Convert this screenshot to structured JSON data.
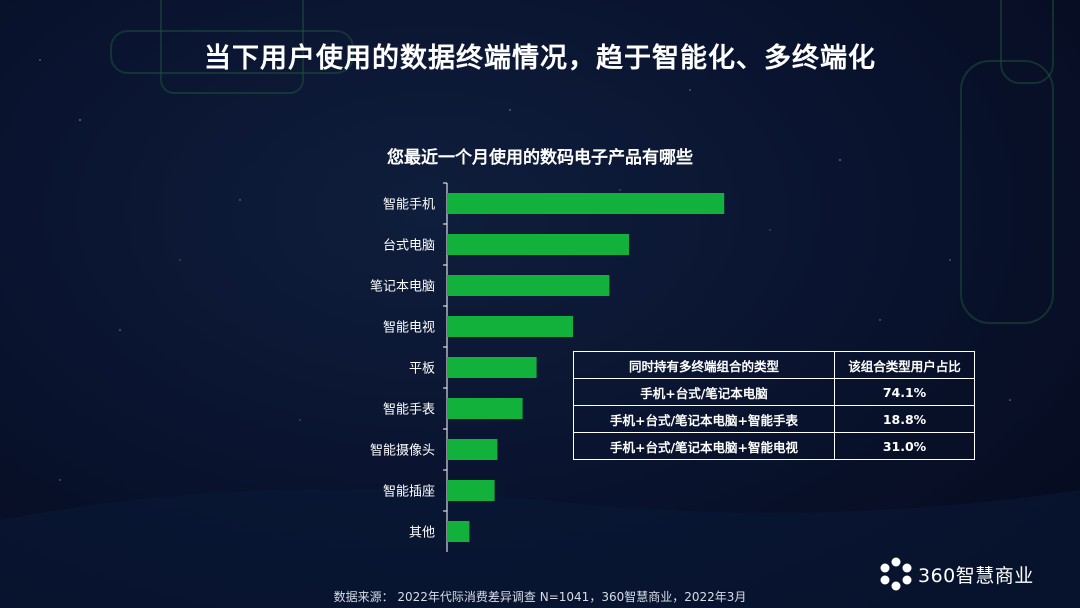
{
  "title": "当下用户使用的数据终端情况，趋于智能化、多终端化",
  "chart_data": {
    "type": "bar",
    "orientation": "horizontal",
    "title": "您最近一个月使用的数码电子产品有哪些",
    "categories": [
      "智能手机",
      "台式电脑",
      "笔记本电脑",
      "智能电视",
      "平板",
      "智能手表",
      "智能摄像头",
      "智能插座",
      "其他"
    ],
    "values": [
      99,
      65,
      58,
      45,
      32,
      27,
      18,
      17,
      8
    ],
    "xlim": [
      0,
      100
    ],
    "bar_color": "#12b13c",
    "axis": "left-vertical-line"
  },
  "combo_table": {
    "headers": [
      "同时持有多终端组合的类型",
      "该组合类型用户占比"
    ],
    "rows": [
      {
        "combo": "手机+台式/笔记本电脑",
        "share": "74.1%"
      },
      {
        "combo": "手机+台式/笔记本电脑+智能手表",
        "share": "18.8%"
      },
      {
        "combo": "手机+台式/笔记本电脑+智能电视",
        "share": "31.0%"
      }
    ]
  },
  "footer": {
    "source": "数据来源： 2022年代际消费差异调查 N=1041，360智慧商业，2022年3月"
  },
  "logo": {
    "text": "360智慧商业",
    "icon": "flower-dots-icon"
  },
  "colors": {
    "background": "#0a1430",
    "bar": "#12b13c",
    "text": "#ffffff"
  }
}
